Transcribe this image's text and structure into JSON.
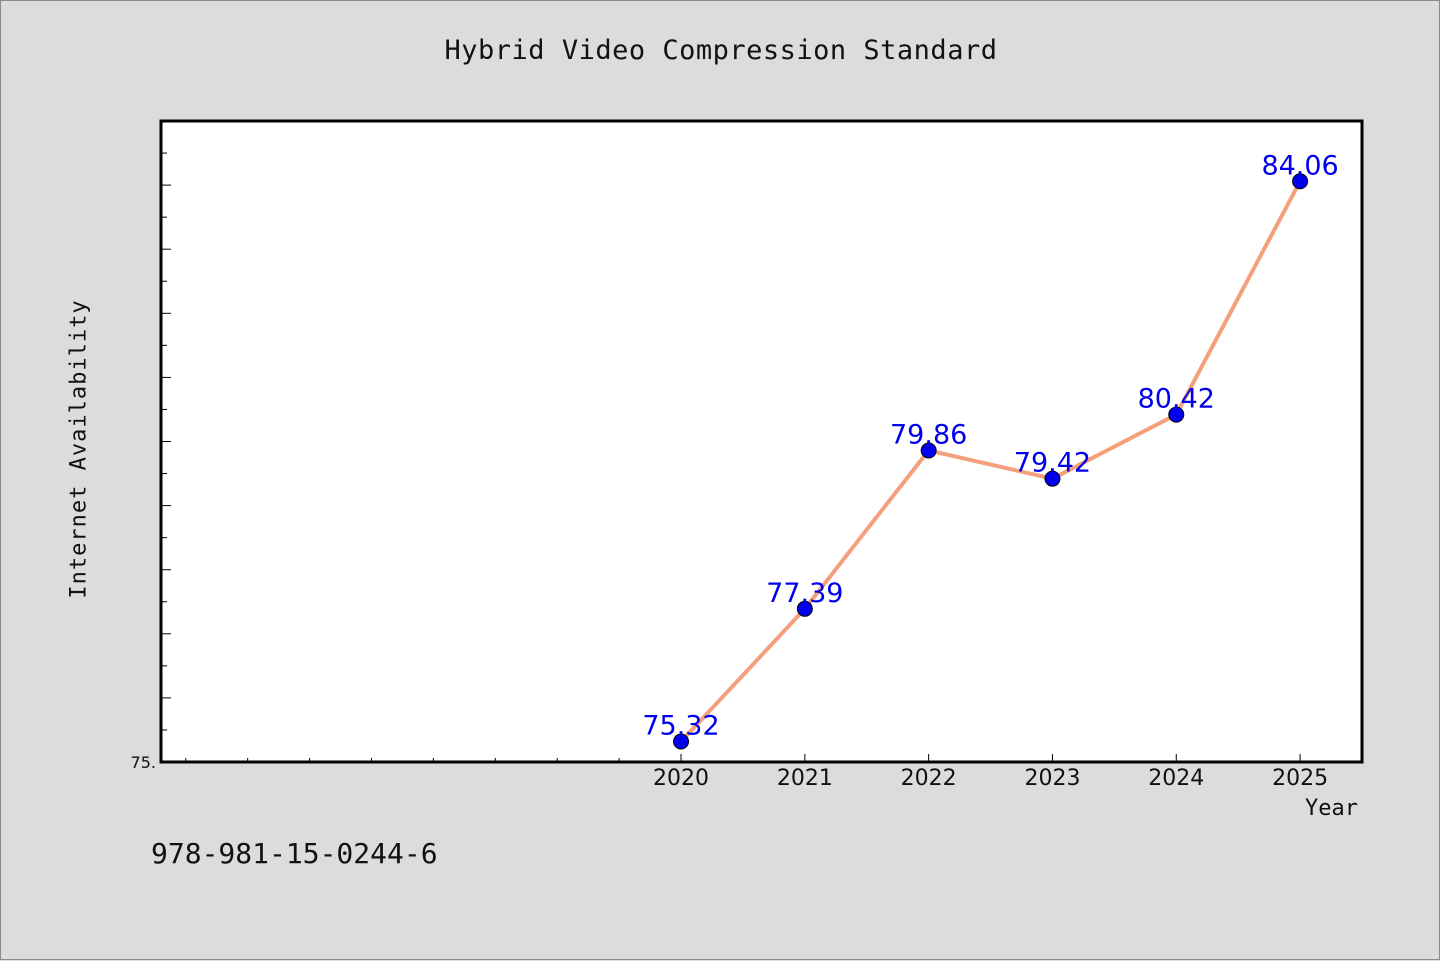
{
  "chart_data": {
    "type": "line",
    "title": "Hybrid Video Compression Standard",
    "xlabel": "Year",
    "ylabel": "Internet Availability",
    "categories": [
      "2020",
      "2021",
      "2022",
      "2023",
      "2024",
      "2025"
    ],
    "series": [
      {
        "values": [
          75.32,
          77.39,
          79.86,
          79.42,
          80.42,
          84.06
        ]
      }
    ],
    "data_labels": [
      "75.32",
      "77.39",
      "79.86",
      "79.42",
      "80.42",
      "84.06"
    ],
    "y_tick_labels": [
      "75."
    ],
    "ylim": [
      75.0,
      85.0
    ],
    "xlim": [
      2015.8,
      2025.5
    ],
    "grid": false,
    "legend": "none",
    "colors": {
      "line": "#f4a07c",
      "marker": "#0000ee",
      "data_label": "#0000ee",
      "plot_background": "#ffffff",
      "page_background": "#dcdcdc"
    }
  },
  "footer_code": "978-981-15-0244-6"
}
